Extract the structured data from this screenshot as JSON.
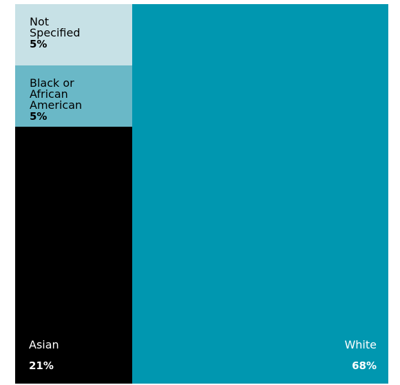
{
  "chart_data": {
    "type": "treemap",
    "title": "",
    "items": [
      {
        "label": "Not\nSpecified",
        "value": 5,
        "value_label": "5%",
        "color": "#c7e1e6",
        "text_color": "#000000"
      },
      {
        "label": "Black or\nAfrican\nAmerican",
        "value": 5,
        "value_label": "5%",
        "color": "#6ab8c7",
        "text_color": "#000000"
      },
      {
        "label": "Asian",
        "value": 21,
        "value_label": "21%",
        "color": "#000000",
        "text_color": "#ffffff"
      },
      {
        "label": "White",
        "value": 68,
        "value_label": "68%",
        "color": "#0097b0",
        "text_color": "#ffffff"
      }
    ]
  }
}
